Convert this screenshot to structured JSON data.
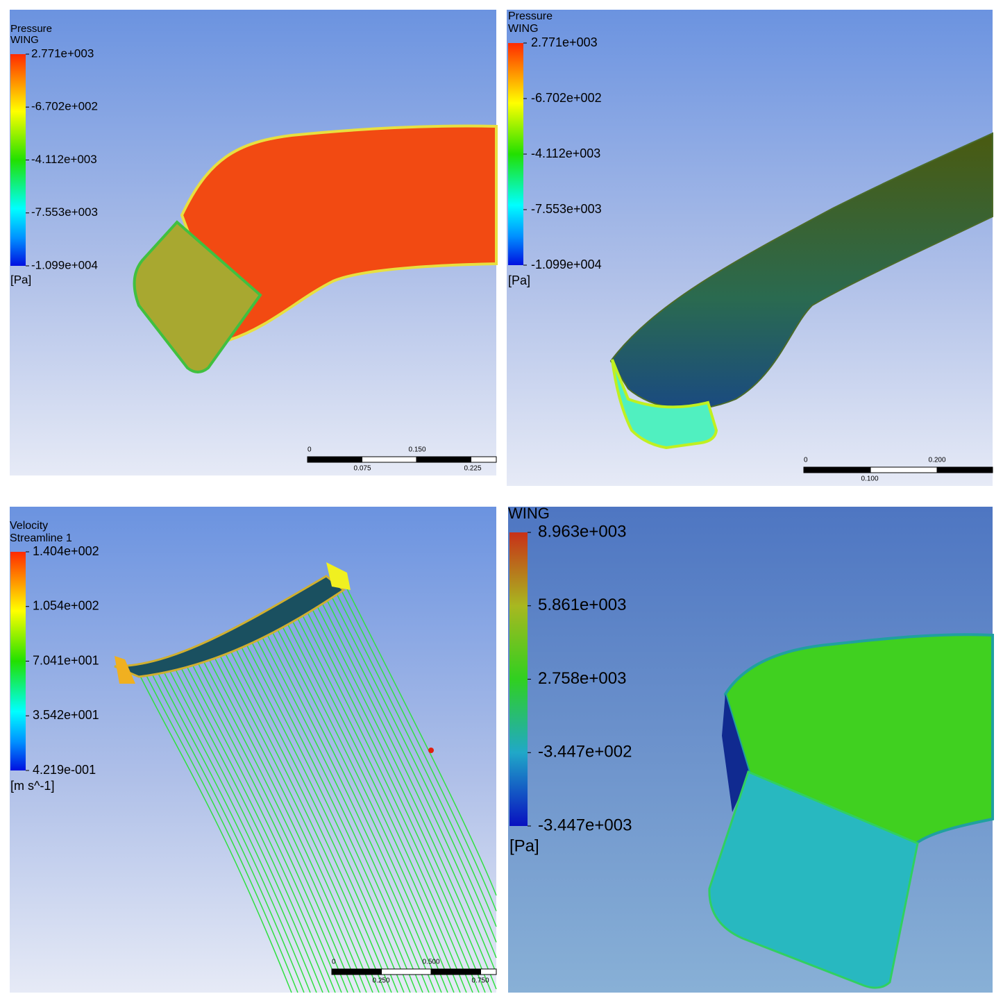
{
  "panels": [
    {
      "legend_title": [
        "Pressure",
        "WING"
      ],
      "legend_ticks": [
        "2.771e+003",
        "-6.702e+002",
        "-4.112e+003",
        "-7.553e+003",
        "-1.099e+004"
      ],
      "unit": "[Pa]",
      "scale_top": [
        "0",
        "0.150"
      ],
      "scale_bottom": [
        "0.075",
        "0.225"
      ]
    },
    {
      "legend_title": [
        "Pressure",
        "WING"
      ],
      "legend_ticks": [
        "2.771e+003",
        "-6.702e+002",
        "-4.112e+003",
        "-7.553e+003",
        "-1.099e+004"
      ],
      "unit": "[Pa]",
      "scale_top": [
        "0",
        "0.200"
      ],
      "scale_bottom": [
        "0.100"
      ]
    },
    {
      "legend_title": [
        "Velocity",
        "Streamline 1"
      ],
      "legend_ticks": [
        "1.404e+002",
        "1.054e+002",
        "7.041e+001",
        "3.542e+001",
        "4.219e-001"
      ],
      "unit": "[m s^-1]",
      "scale_top": [
        "0",
        "0.500"
      ],
      "scale_bottom": [
        "0.250",
        "0.750"
      ]
    },
    {
      "legend_title": [
        "WING"
      ],
      "legend_ticks": [
        "8.963e+003",
        "5.861e+003",
        "2.758e+003",
        "-3.447e+002",
        "-3.447e+003"
      ],
      "unit": "[Pa]"
    }
  ]
}
